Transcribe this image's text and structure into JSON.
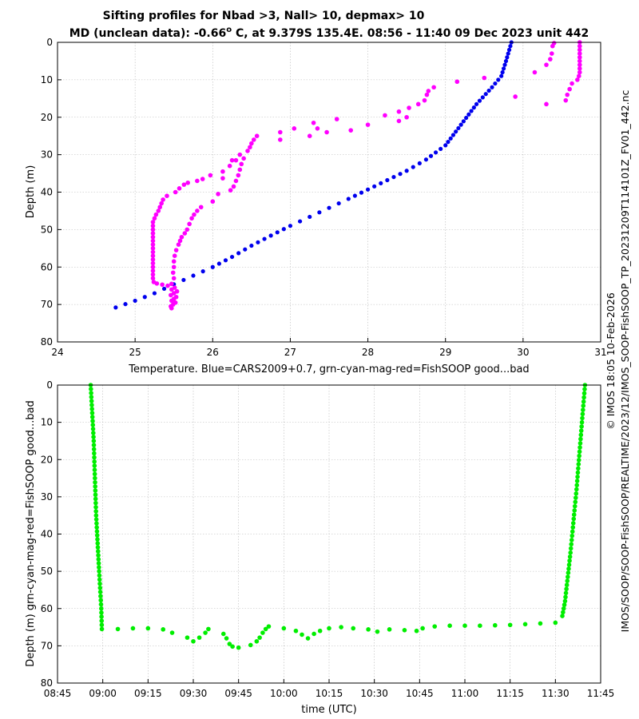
{
  "figure": {
    "title_line1": "Sifting profiles for Nbad >3, Nall> 10, depmax> 10",
    "title_line2_prefix": "MD (unclean data): -0.66",
    "title_line2_degree": "o",
    "title_line2_suffix": " C, at 9.379S 135.4E. 08:56 - 11:40 09 Dec 2023 unit 442",
    "side_text_file": "IMOS/SOOP/SOOP-FishSOOP/REALTIME/2023/12/IMOS_SOOP-FishSOOP_TP_20231209T114101Z_FV01_442.nc",
    "side_text_copyright": "© IMOS 18:05 10-Feb-2026"
  },
  "chart_data": [
    {
      "type": "scatter",
      "name": "temperature-profile",
      "xlabel": "Temperature. Blue=CARS2009+0.7, grn-cyan-mag-red=FishSOOP good...bad",
      "ylabel": "Depth (m)",
      "xlim": [
        24,
        31
      ],
      "ylim": [
        0,
        80
      ],
      "y_reversed": true,
      "grid": true,
      "x_ticks": [
        24,
        25,
        26,
        27,
        28,
        29,
        30,
        31
      ],
      "y_ticks": [
        0,
        10,
        20,
        30,
        40,
        50,
        60,
        70,
        80
      ],
      "colors": {
        "cars": "#0000ee",
        "fishsoop": "#ff00ff"
      },
      "cars_curve": [
        {
          "t": 24.75,
          "d": 70.8
        },
        {
          "t": 25.0,
          "d": 69.0
        },
        {
          "t": 25.25,
          "d": 67.0
        },
        {
          "t": 25.5,
          "d": 64.6
        },
        {
          "t": 25.75,
          "d": 62.3
        },
        {
          "t": 26.0,
          "d": 60.0
        },
        {
          "t": 26.25,
          "d": 57.3
        },
        {
          "t": 26.5,
          "d": 54.3
        },
        {
          "t": 26.75,
          "d": 51.6
        },
        {
          "t": 27.0,
          "d": 49.0
        },
        {
          "t": 27.25,
          "d": 46.6
        },
        {
          "t": 27.5,
          "d": 44.2
        },
        {
          "t": 27.75,
          "d": 41.8
        },
        {
          "t": 28.0,
          "d": 39.3
        },
        {
          "t": 28.25,
          "d": 36.8
        },
        {
          "t": 28.5,
          "d": 34.3
        },
        {
          "t": 28.75,
          "d": 31.3
        },
        {
          "t": 29.0,
          "d": 27.5
        },
        {
          "t": 29.2,
          "d": 22.0
        },
        {
          "t": 29.4,
          "d": 16.5
        },
        {
          "t": 29.6,
          "d": 12.0
        },
        {
          "t": 29.72,
          "d": 9.0
        },
        {
          "t": 29.78,
          "d": 5.0
        },
        {
          "t": 29.85,
          "d": 0.0
        }
      ],
      "fishsoop_points": [
        [
          25.47,
          71
        ],
        [
          25.46,
          70.5
        ],
        [
          25.49,
          70
        ],
        [
          25.52,
          69.5
        ],
        [
          25.47,
          69
        ],
        [
          25.5,
          68.5
        ],
        [
          25.53,
          68
        ],
        [
          25.46,
          67.5
        ],
        [
          25.5,
          67
        ],
        [
          25.54,
          66.5
        ],
        [
          25.47,
          66
        ],
        [
          25.51,
          65.5
        ],
        [
          25.42,
          65
        ],
        [
          25.35,
          64.7
        ],
        [
          25.28,
          64.4
        ],
        [
          25.24,
          64
        ],
        [
          25.23,
          63
        ],
        [
          25.23,
          62
        ],
        [
          25.23,
          61
        ],
        [
          25.23,
          60
        ],
        [
          25.23,
          59
        ],
        [
          25.23,
          58
        ],
        [
          25.23,
          57
        ],
        [
          25.23,
          56
        ],
        [
          25.23,
          55
        ],
        [
          25.23,
          54
        ],
        [
          25.23,
          53
        ],
        [
          25.23,
          52
        ],
        [
          25.23,
          51
        ],
        [
          25.23,
          50
        ],
        [
          25.23,
          49
        ],
        [
          25.23,
          48
        ],
        [
          25.25,
          47
        ],
        [
          25.27,
          46
        ],
        [
          25.3,
          45
        ],
        [
          25.32,
          44
        ],
        [
          25.34,
          43
        ],
        [
          25.36,
          42
        ],
        [
          25.41,
          41
        ],
        [
          25.52,
          40
        ],
        [
          25.57,
          39
        ],
        [
          25.63,
          38
        ],
        [
          25.68,
          37.5
        ],
        [
          25.8,
          37
        ],
        [
          25.87,
          36.5
        ],
        [
          25.97,
          35.5
        ],
        [
          26.13,
          34.5
        ],
        [
          26.22,
          33
        ],
        [
          26.3,
          31.5
        ],
        [
          26.35,
          30
        ],
        [
          26.45,
          29
        ],
        [
          26.48,
          28
        ],
        [
          26.5,
          27
        ],
        [
          26.53,
          26
        ],
        [
          26.57,
          25
        ],
        [
          26.87,
          24
        ],
        [
          27.05,
          23
        ],
        [
          27.3,
          21.5
        ],
        [
          27.6,
          20.5
        ],
        [
          27.78,
          23.5
        ],
        [
          28.0,
          22
        ],
        [
          28.22,
          19.5
        ],
        [
          28.4,
          18.5
        ],
        [
          28.53,
          17.5
        ],
        [
          28.65,
          16.5
        ],
        [
          28.73,
          15.5
        ],
        [
          28.76,
          14
        ],
        [
          28.78,
          13
        ],
        [
          28.85,
          12
        ],
        [
          29.15,
          10.5
        ],
        [
          29.5,
          9.5
        ],
        [
          29.9,
          14.5
        ],
        [
          30.15,
          8
        ],
        [
          30.3,
          6
        ],
        [
          30.35,
          4.5
        ],
        [
          30.37,
          3
        ],
        [
          30.38,
          1
        ],
        [
          30.4,
          0.2
        ],
        [
          30.3,
          16.5
        ],
        [
          30.55,
          15.5
        ],
        [
          30.57,
          14
        ],
        [
          30.6,
          12.5
        ],
        [
          30.63,
          11
        ],
        [
          30.7,
          10
        ],
        [
          30.72,
          9
        ],
        [
          30.73,
          8
        ],
        [
          30.73,
          7
        ],
        [
          30.73,
          6
        ],
        [
          30.73,
          5
        ],
        [
          30.73,
          4
        ],
        [
          30.73,
          3
        ],
        [
          30.73,
          2
        ],
        [
          30.73,
          1
        ],
        [
          30.73,
          0
        ],
        [
          26.0,
          42.5
        ],
        [
          26.07,
          40.5
        ],
        [
          26.23,
          39.5
        ],
        [
          26.27,
          38.5
        ],
        [
          26.3,
          37
        ],
        [
          26.33,
          35.5
        ],
        [
          26.35,
          34
        ],
        [
          26.37,
          32.5
        ],
        [
          26.4,
          31
        ],
        [
          26.25,
          31.5
        ],
        [
          26.87,
          26
        ],
        [
          27.25,
          25
        ],
        [
          27.47,
          24
        ],
        [
          27.35,
          23
        ],
        [
          28.4,
          21
        ],
        [
          28.5,
          20
        ],
        [
          26.13,
          36.3
        ],
        [
          25.85,
          44
        ],
        [
          25.8,
          45
        ],
        [
          25.76,
          46
        ],
        [
          25.73,
          47
        ],
        [
          25.7,
          48.5
        ],
        [
          25.67,
          50
        ],
        [
          25.64,
          51
        ],
        [
          25.6,
          52
        ],
        [
          25.58,
          53
        ],
        [
          25.56,
          54
        ],
        [
          25.53,
          55.5
        ],
        [
          25.51,
          57
        ],
        [
          25.5,
          58.5
        ],
        [
          25.5,
          60
        ],
        [
          25.49,
          61.5
        ],
        [
          25.5,
          63
        ],
        [
          25.47,
          64.5
        ]
      ]
    },
    {
      "type": "scatter",
      "name": "depth-vs-time",
      "xlabel": "time (UTC)",
      "ylabel": "Depth (m) grn-cyan-mag-red=FishSOOP good...bad",
      "xlim": [
        "08:45",
        "11:45"
      ],
      "ylim": [
        0,
        80
      ],
      "y_reversed": true,
      "grid": true,
      "x_ticks": [
        "08:45",
        "09:00",
        "09:15",
        "09:30",
        "09:45",
        "10:00",
        "10:15",
        "10:30",
        "10:45",
        "11:00",
        "11:15",
        "11:30",
        "11:45"
      ],
      "y_ticks": [
        0,
        10,
        20,
        30,
        40,
        50,
        60,
        70,
        80
      ],
      "colors": {
        "good": "#00ee00"
      },
      "descent": [
        [
          "08:56.0",
          0
        ],
        [
          "08:57.0",
          15
        ],
        [
          "08:57.8",
          35
        ],
        [
          "08:58.8",
          50
        ],
        [
          "08:59.5",
          60
        ],
        [
          "08:59.7",
          65.5
        ]
      ],
      "ascent": [
        [
          "11:32.3",
          62
        ],
        [
          "11:33.2",
          58
        ],
        [
          "11:35.0",
          45
        ],
        [
          "11:37.0",
          28
        ],
        [
          "11:38.8",
          10
        ],
        [
          "11:39.8",
          0
        ]
      ],
      "bottom_points": [
        [
          "09:05",
          65.5
        ],
        [
          "09:10",
          65.3
        ],
        [
          "09:15",
          65.3
        ],
        [
          "09:20",
          65.6
        ],
        [
          "09:23",
          66.5
        ],
        [
          "09:28",
          67.8
        ],
        [
          "09:30",
          68.8
        ],
        [
          "09:32",
          67.8
        ],
        [
          "09:34",
          66.5
        ],
        [
          "09:35",
          65.5
        ],
        [
          "09:40",
          66.8
        ],
        [
          "09:41",
          68.0
        ],
        [
          "09:42",
          69.5
        ],
        [
          "09:43",
          70.2
        ],
        [
          "09:45",
          70.5
        ],
        [
          "09:49",
          69.8
        ],
        [
          "09:51",
          68.8
        ],
        [
          "09:52",
          67.8
        ],
        [
          "09:53",
          66.5
        ],
        [
          "09:54",
          65.5
        ],
        [
          "09:55",
          64.8
        ],
        [
          "10:00",
          65.3
        ],
        [
          "10:04",
          66.0
        ],
        [
          "10:06",
          67.0
        ],
        [
          "10:08",
          68.0
        ],
        [
          "10:10",
          66.8
        ],
        [
          "10:12",
          66.0
        ],
        [
          "10:15",
          65.3
        ],
        [
          "10:19",
          65.0
        ],
        [
          "10:23",
          65.3
        ],
        [
          "10:28",
          65.6
        ],
        [
          "10:31",
          66.2
        ],
        [
          "10:35",
          65.6
        ],
        [
          "10:40",
          65.8
        ],
        [
          "10:44",
          66.0
        ],
        [
          "10:46",
          65.3
        ],
        [
          "10:50",
          64.8
        ],
        [
          "10:55",
          64.6
        ],
        [
          "11:00",
          64.6
        ],
        [
          "11:05",
          64.6
        ],
        [
          "11:10",
          64.5
        ],
        [
          "11:15",
          64.4
        ],
        [
          "11:20",
          64.2
        ],
        [
          "11:25",
          64.0
        ],
        [
          "11:30",
          63.8
        ]
      ]
    }
  ]
}
